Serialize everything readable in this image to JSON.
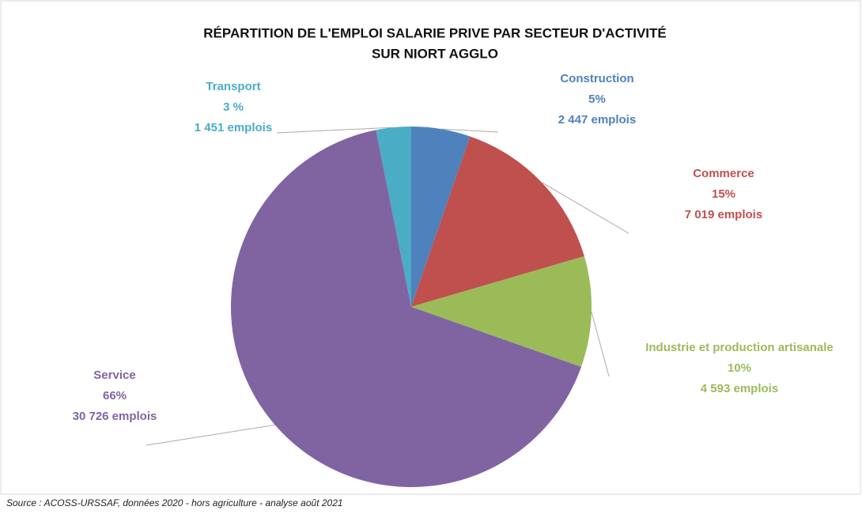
{
  "chart_data": {
    "type": "pie",
    "title": "RÉPARTITION DE L'EMPLOI SALARIE PRIVE PAR SECTEUR D'ACTIVITÉ",
    "subtitle": "SUR NIORT AGGLO",
    "categories": [
      "Construction",
      "Commerce",
      "Industrie et production artisanale",
      "Service",
      "Transport"
    ],
    "values": [
      2447,
      7019,
      4593,
      30726,
      1451
    ],
    "value_labels": [
      "2 447 emplois",
      "7 019 emplois",
      "4 593 emplois",
      "30 726 emplois",
      "1 451 emplois"
    ],
    "percent_labels": [
      "5%",
      "15%",
      "10%",
      "66%",
      "3 %"
    ],
    "colors": [
      "#4f81bd",
      "#c0504d",
      "#9bbb59",
      "#8064a2",
      "#4bacc6"
    ],
    "source": "Source : ACOSS-URSSAF, données 2020 - hors agriculture - analyse août 2021"
  }
}
